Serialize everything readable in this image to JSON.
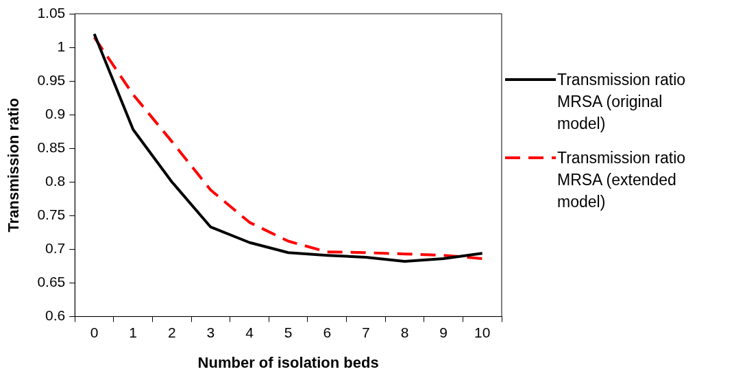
{
  "chart_data": {
    "type": "line",
    "xlabel": "Number of isolation beds",
    "ylabel": "Transmission ratio",
    "categories": [
      "0",
      "1",
      "2",
      "3",
      "4",
      "5",
      "6",
      "7",
      "8",
      "9",
      "10"
    ],
    "series": [
      {
        "name": "Transmission ratio MRSA (original model)",
        "color": "#000000",
        "line_style": "solid",
        "values": [
          1.02,
          0.878,
          0.8,
          0.733,
          0.71,
          0.695,
          0.691,
          0.688,
          0.682,
          0.686,
          0.694
        ]
      },
      {
        "name": "Transmission ratio MRSA (extended model)",
        "color": "#ff0000",
        "line_style": "dashed",
        "values": [
          1.015,
          0.93,
          0.86,
          0.788,
          0.74,
          0.712,
          0.696,
          0.695,
          0.693,
          0.691,
          0.686
        ]
      }
    ],
    "ylim": [
      0.6,
      1.05
    ],
    "yticks": [
      0.6,
      0.65,
      0.7,
      0.75,
      0.8,
      0.85,
      0.9,
      0.95,
      1,
      1.05
    ],
    "grid": false,
    "legend": "right",
    "marker": "none"
  }
}
